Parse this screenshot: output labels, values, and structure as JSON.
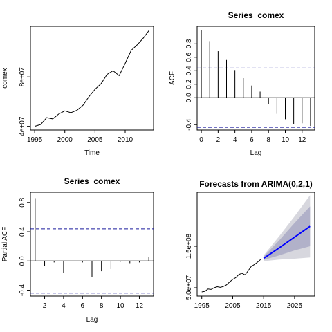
{
  "chart_data": [
    {
      "type": "line",
      "title": "",
      "xlabel": "Time",
      "ylabel": "comex",
      "x": [
        1995,
        1996,
        1997,
        1998,
        1999,
        2000,
        2001,
        2002,
        2003,
        2004,
        2005,
        2006,
        2007,
        2008,
        2009,
        2010,
        2011,
        2012,
        2013,
        2014
      ],
      "values": [
        40000000,
        41500000,
        47000000,
        46000000,
        50000000,
        52500000,
        51000000,
        53000000,
        57000000,
        64000000,
        70000000,
        74500000,
        82000000,
        85000000,
        81000000,
        91000000,
        101500000,
        106000000,
        111500000,
        118000000
      ],
      "xticks": [
        "1995",
        "2000",
        "2005",
        "2010"
      ],
      "yticks": [
        "4e+07",
        "8e+07"
      ],
      "xlim": [
        1994.3,
        2014.7
      ],
      "ylim": [
        37000000,
        121000000
      ]
    },
    {
      "type": "bar",
      "title": "Series  comex",
      "xlabel": "Lag",
      "ylabel": "ACF",
      "lags": [
        0,
        1,
        2,
        3,
        4,
        5,
        6,
        7,
        8,
        9,
        10,
        11,
        12,
        13
      ],
      "values": [
        1.0,
        0.84,
        0.69,
        0.56,
        0.41,
        0.29,
        0.18,
        0.09,
        -0.09,
        -0.24,
        -0.32,
        -0.39,
        -0.38,
        -0.42
      ],
      "ci": [
        0.44,
        -0.44
      ],
      "xticks": [
        "0",
        "2",
        "4",
        "6",
        "8",
        "10",
        "12"
      ],
      "yticks": [
        "-0.4",
        "0.0",
        "0.2",
        "0.4",
        "0.6",
        "0.8"
      ],
      "xlim": [
        -0.5,
        13.5
      ],
      "ylim": [
        -0.48,
        1.06
      ]
    },
    {
      "type": "bar",
      "title": "Series  comex",
      "xlabel": "Lag",
      "ylabel": "Partial ACF",
      "lags": [
        1,
        2,
        3,
        4,
        5,
        6,
        7,
        8,
        9,
        10,
        11,
        12,
        13
      ],
      "values": [
        0.86,
        -0.07,
        -0.02,
        -0.16,
        0.0,
        -0.02,
        -0.22,
        -0.14,
        -0.11,
        -0.01,
        -0.03,
        -0.02,
        0.05
      ],
      "ci": [
        0.44,
        -0.44
      ],
      "xticks": [
        "2",
        "4",
        "6",
        "8",
        "10",
        "12"
      ],
      "yticks": [
        "-0.4",
        "0.0",
        "0.4",
        "0.8"
      ],
      "xlim": [
        0.5,
        13.5
      ],
      "ylim": [
        -0.48,
        0.94
      ]
    },
    {
      "type": "line",
      "title": "Forecasts from ARIMA(0,2,1)",
      "xlabel": "",
      "ylabel": "",
      "history_x": [
        1995,
        1996,
        1997,
        1998,
        1999,
        2000,
        2001,
        2002,
        2003,
        2004,
        2005,
        2006,
        2007,
        2008,
        2009,
        2010,
        2011,
        2012,
        2013,
        2014
      ],
      "history_y": [
        40000000,
        41500000,
        47000000,
        46000000,
        50000000,
        52500000,
        51000000,
        53000000,
        57000000,
        64000000,
        70000000,
        74500000,
        82000000,
        85000000,
        81000000,
        91000000,
        101500000,
        106000000,
        111500000,
        118000000
      ],
      "forecast_x": [
        2015,
        2020,
        2025,
        2030
      ],
      "forecast_mean": [
        121000000,
        146000000,
        172000000,
        198000000
      ],
      "pi80_lo": [
        117000000,
        128000000,
        140000000,
        150000000
      ],
      "pi80_hi": [
        125000000,
        164000000,
        206000000,
        246000000
      ],
      "pi95_lo": [
        114000000,
        118000000,
        120000000,
        123000000
      ],
      "pi95_hi": [
        128000000,
        174000000,
        222000000,
        273000000
      ],
      "xticks": [
        "1995",
        "2005",
        "2015",
        "2025"
      ],
      "yticks": [
        "5.0e+07",
        "1.5e+08"
      ],
      "xlim": [
        1993.5,
        2031.5
      ],
      "ylim": [
        30000000,
        280000000
      ]
    }
  ],
  "colors": {
    "line": "#000000",
    "ci_line": "#1a1a9c",
    "forecast_line": "#0000ff",
    "pi80": "#b1b1c9",
    "pi95": "#d7d7de"
  }
}
